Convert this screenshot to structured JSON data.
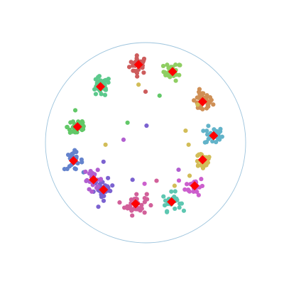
{
  "chart_data": {
    "type": "scatter",
    "title": "",
    "xlabel": "",
    "ylabel": "",
    "grid": false,
    "legend": "none",
    "xlim": [
      -1.1,
      1.1
    ],
    "ylim": [
      -1.1,
      1.1
    ],
    "boundary": {
      "shape": "circle",
      "radius": 1.0,
      "color": "#9dc4dd"
    },
    "center_marker_color": "#ff0000",
    "clusters": [
      {
        "color": "#cd5c5c",
        "center": [
          -0.07,
          0.78
        ],
        "spread": 0.045,
        "count": 30
      },
      {
        "color": "#8fce62",
        "center": [
          0.27,
          0.71
        ],
        "spread": 0.045,
        "count": 28
      },
      {
        "color": "#cf8f55",
        "center": [
          0.57,
          0.41
        ],
        "spread": 0.05,
        "count": 40
      },
      {
        "color": "#62b3c9",
        "center": [
          0.68,
          0.07
        ],
        "spread": 0.045,
        "count": 30
      },
      {
        "color": "#d2bd58",
        "center": [
          0.57,
          -0.17
        ],
        "spread": 0.05,
        "count": 28
      },
      {
        "color": "#cc5fcd",
        "center": [
          0.49,
          -0.43
        ],
        "spread": 0.045,
        "count": 28
      },
      {
        "color": "#5dc7b1",
        "center": [
          0.26,
          -0.59
        ],
        "spread": 0.045,
        "count": 28
      },
      {
        "color": "#d2609a",
        "center": [
          -0.1,
          -0.61
        ],
        "spread": 0.055,
        "count": 40
      },
      {
        "color": "#7b62d0",
        "center": [
          -0.42,
          -0.47
        ],
        "spread": 0.05,
        "count": 32
      },
      {
        "color": "#b15fd0",
        "center": [
          -0.52,
          -0.37
        ],
        "spread": 0.045,
        "count": 22
      },
      {
        "color": "#6483cd",
        "center": [
          -0.72,
          -0.18
        ],
        "spread": 0.045,
        "count": 26
      },
      {
        "color": "#62c868",
        "center": [
          -0.68,
          0.16
        ],
        "spread": 0.05,
        "count": 36
      },
      {
        "color": "#5cc98c",
        "center": [
          -0.45,
          0.56
        ],
        "spread": 0.05,
        "count": 36
      }
    ],
    "outliers": [
      {
        "x": -0.18,
        "y": 0.2,
        "color": "#62c868"
      },
      {
        "x": 0.01,
        "y": 0.17,
        "color": "#7b62d0"
      },
      {
        "x": -0.4,
        "y": -0.02,
        "color": "#d2bd58"
      },
      {
        "x": -0.22,
        "y": 0.03,
        "color": "#b15fd0"
      },
      {
        "x": 0.14,
        "y": 0.47,
        "color": "#62c868"
      },
      {
        "x": 0.0,
        "y": 0.51,
        "color": "#cd5c5c"
      },
      {
        "x": -0.07,
        "y": 0.58,
        "color": "#d2bd58"
      },
      {
        "x": 0.4,
        "y": 0.12,
        "color": "#d2bd58"
      },
      {
        "x": 0.43,
        "y": -0.02,
        "color": "#d2bd58"
      },
      {
        "x": 0.33,
        "y": -0.27,
        "color": "#b15fd0"
      },
      {
        "x": 0.29,
        "y": -0.43,
        "color": "#d2bd58"
      },
      {
        "x": -0.13,
        "y": -0.37,
        "color": "#7b62d0"
      },
      {
        "x": -0.01,
        "y": -0.41,
        "color": "#cc5fcd"
      },
      {
        "x": 0.11,
        "y": -0.38,
        "color": "#d2609a"
      },
      {
        "x": -0.42,
        "y": -0.19,
        "color": "#7b62d0"
      },
      {
        "x": 0.52,
        "y": 0.38,
        "color": "#d2bd58"
      },
      {
        "x": 0.44,
        "y": -0.33,
        "color": "#d2bd58"
      },
      {
        "x": -0.6,
        "y": -0.29,
        "color": "#b15fd0"
      }
    ]
  }
}
